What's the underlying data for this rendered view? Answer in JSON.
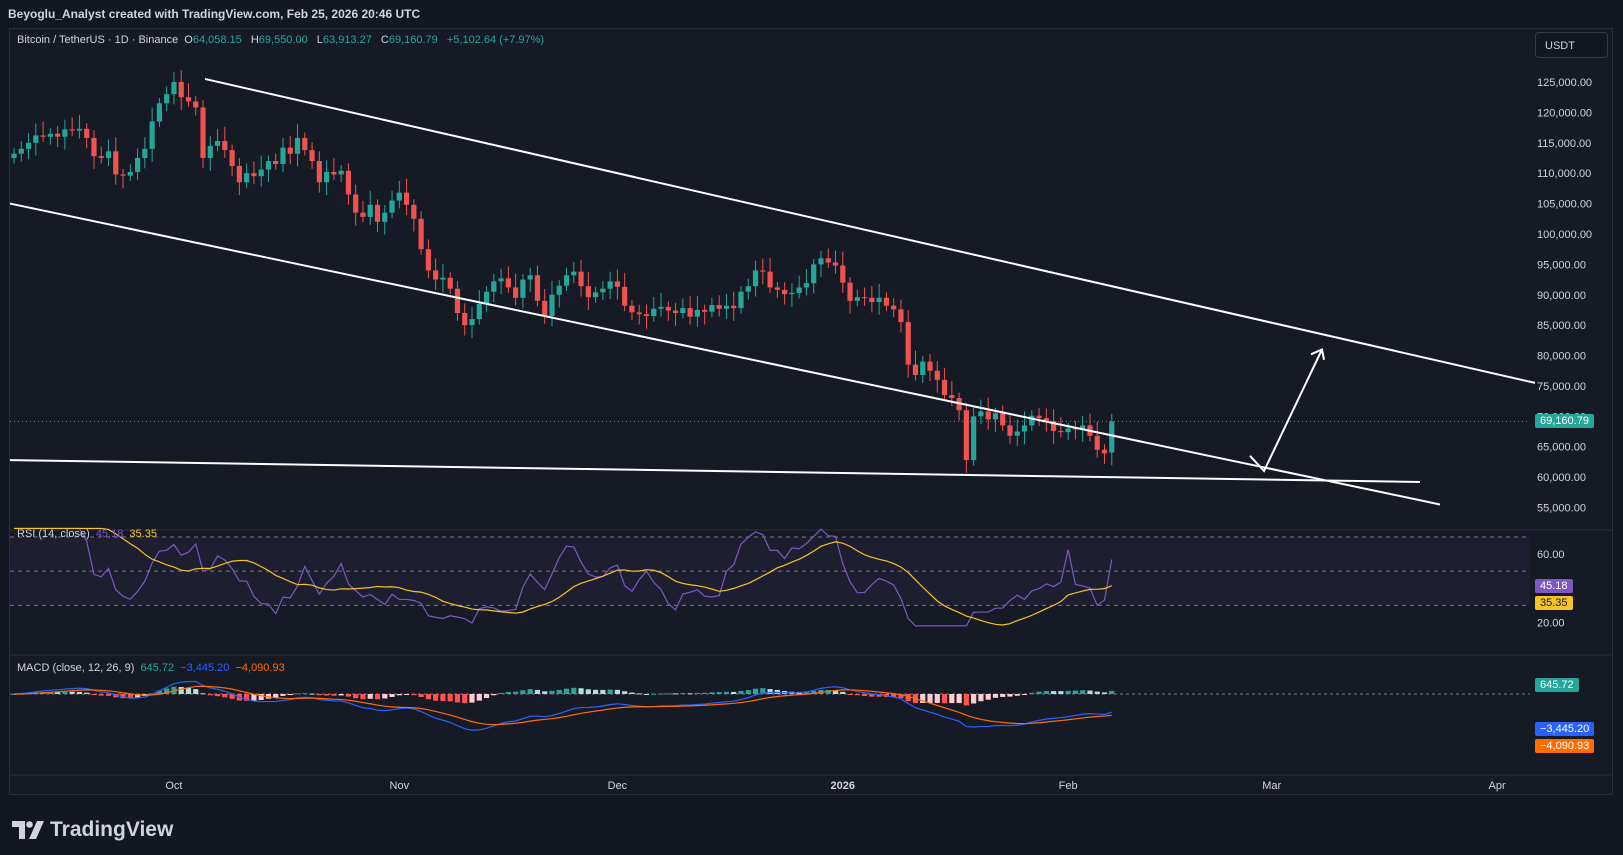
{
  "header": {
    "text": "Beyoglu_Analyst created with TradingView.com, Feb 25, 2026 20:46 UTC"
  },
  "symbol": {
    "name": "Bitcoin / TetherUS · 1D · Binance",
    "open": "64,058.15",
    "high": "69,550.00",
    "low": "63,913.27",
    "close": "69,160.79",
    "change": "+5,102.64 (+7.97%)"
  },
  "currency_button": "USDT",
  "last_price": "69,160.79",
  "rsi": {
    "label": "RSI (14, close)",
    "value": "45.18",
    "ma": "35.35"
  },
  "macd": {
    "label": "MACD (close, 12, 26, 9)",
    "hist": "645.72",
    "macd": "−3,445.20",
    "signal": "−4,090.93"
  },
  "brand": "TradingView",
  "colors": {
    "up": "#26a69a",
    "down": "#ef5350",
    "rsi_line": "#7e57c2",
    "rsi_ma": "#f7c325",
    "macd_line": "#2962ff",
    "signal_line": "#ff6d00",
    "bg": "#161a25"
  },
  "chart_data": [
    {
      "type": "candlestick",
      "title": "Bitcoin / TetherUS · 1D · Binance",
      "ylim": [
        52000,
        130000
      ],
      "y_ticks": [
        55000,
        60000,
        65000,
        70000,
        75000,
        80000,
        85000,
        90000,
        95000,
        100000,
        105000,
        110000,
        115000,
        120000,
        125000
      ],
      "y_tick_labels": [
        "55,000.00",
        "60,000.00",
        "65,000.00",
        "70,000.00",
        "75,000.00",
        "80,000.00",
        "85,000.00",
        "90,000.00",
        "95,000.00",
        "100,000.00",
        "105,000.00",
        "110,000.00",
        "115,000.00",
        "120,000.00",
        "125,000.00"
      ],
      "x_tick_labels": [
        "Oct",
        "Nov",
        "Dec",
        "2026",
        "Feb",
        "Mar",
        "Apr"
      ],
      "x_tick_days": [
        22,
        53,
        83,
        114,
        145,
        173,
        204
      ],
      "first_day": "2025-09-09",
      "closes": [
        113200,
        114000,
        115000,
        116200,
        116000,
        116500,
        116000,
        117200,
        117000,
        117300,
        115800,
        112800,
        112500,
        113600,
        109800,
        109600,
        110200,
        112500,
        114000,
        118500,
        121500,
        123000,
        125000,
        122500,
        121800,
        120800,
        112500,
        114500,
        115300,
        113800,
        111200,
        108500,
        110000,
        109500,
        110600,
        112000,
        111500,
        114200,
        113200,
        115800,
        113800,
        112000,
        108500,
        110200,
        109800,
        110400,
        106500,
        103500,
        102800,
        104800,
        102000,
        103500,
        105500,
        106800,
        104800,
        102500,
        97500,
        94000,
        92500,
        92800,
        91000,
        87000,
        85000,
        86000,
        88500,
        90500,
        92200,
        92700,
        91200,
        89500,
        92500,
        93200,
        89000,
        86500,
        90000,
        91500,
        93200,
        93800,
        91400,
        89600,
        90400,
        91000,
        92200,
        91300,
        88200,
        87100,
        86800,
        86500,
        87700,
        88000,
        87400,
        87000,
        87800,
        86400,
        87500,
        87200,
        88300,
        87700,
        88200,
        87800,
        90500,
        91400,
        94000,
        93800,
        91200,
        90800,
        90100,
        90300,
        91200,
        91900,
        95000,
        96000,
        95300,
        94800,
        92000,
        89000,
        89600,
        89500,
        88800,
        89500,
        88200,
        87600,
        85500,
        78500,
        76800,
        79000,
        77500,
        76000,
        73500,
        73000,
        71000,
        62800,
        70000,
        70800,
        69500,
        70500,
        68500,
        66800,
        67500,
        68500,
        70100,
        69700,
        69200,
        67600,
        67400,
        68000,
        67900,
        68500,
        66800,
        64500,
        63900,
        69160
      ],
      "opens": [
        112500,
        113200,
        114000,
        115000,
        116200,
        116000,
        116500,
        116000,
        117200,
        117000,
        117300,
        115800,
        112800,
        112500,
        113600,
        109800,
        109600,
        110200,
        112500,
        114000,
        118500,
        121500,
        123000,
        125000,
        122500,
        121800,
        120800,
        112500,
        114500,
        115300,
        113800,
        111200,
        108500,
        110000,
        109500,
        110600,
        112000,
        111500,
        114200,
        113200,
        115800,
        113800,
        112000,
        108500,
        110200,
        109800,
        110400,
        106500,
        103500,
        102800,
        104800,
        102000,
        103500,
        105500,
        106800,
        104800,
        102500,
        97500,
        94000,
        92500,
        92800,
        91000,
        87000,
        85000,
        86000,
        88500,
        90500,
        92200,
        92700,
        91200,
        89500,
        92500,
        93200,
        89000,
        86500,
        90000,
        91500,
        93200,
        93800,
        91400,
        89600,
        90400,
        91000,
        92200,
        91300,
        88200,
        87100,
        86800,
        86500,
        87700,
        88000,
        87400,
        87000,
        87800,
        86400,
        87500,
        87200,
        88300,
        87700,
        88200,
        87800,
        90500,
        91400,
        94000,
        93800,
        91200,
        90800,
        90100,
        90300,
        91200,
        91900,
        95000,
        96000,
        95300,
        94800,
        92000,
        89000,
        89600,
        89500,
        88800,
        89500,
        88200,
        87600,
        85500,
        78500,
        76800,
        79000,
        77500,
        76000,
        73500,
        73000,
        71000,
        62800,
        70000,
        70800,
        69500,
        70500,
        68500,
        66800,
        67500,
        68500,
        70100,
        69700,
        69200,
        67600,
        67400,
        68000,
        67900,
        68500,
        66800,
        64500,
        64058
      ],
      "trendlines": [
        {
          "name": "upper",
          "from": [
            0,
            125500
          ],
          "to": [
            1,
            75500
          ]
        },
        {
          "name": "lower",
          "from": [
            0,
            105000
          ],
          "to": [
            1,
            55500
          ]
        },
        {
          "name": "support",
          "from": [
            0,
            62800
          ],
          "to": [
            1,
            59200
          ]
        }
      ]
    },
    {
      "type": "line",
      "title": "RSI (14, close)",
      "y_ticks": [
        20,
        60
      ],
      "y_tick_labels": [
        "20.00",
        "60.00"
      ],
      "series": [
        {
          "name": "RSI",
          "last": 45.18
        },
        {
          "name": "RSI MA",
          "last": 35.35
        }
      ]
    },
    {
      "type": "bar",
      "title": "MACD (close, 12, 26, 9)",
      "series": [
        {
          "name": "Histogram",
          "last": 645.72
        },
        {
          "name": "MACD",
          "last": -3445.2
        },
        {
          "name": "Signal",
          "last": -4090.93
        }
      ]
    }
  ]
}
